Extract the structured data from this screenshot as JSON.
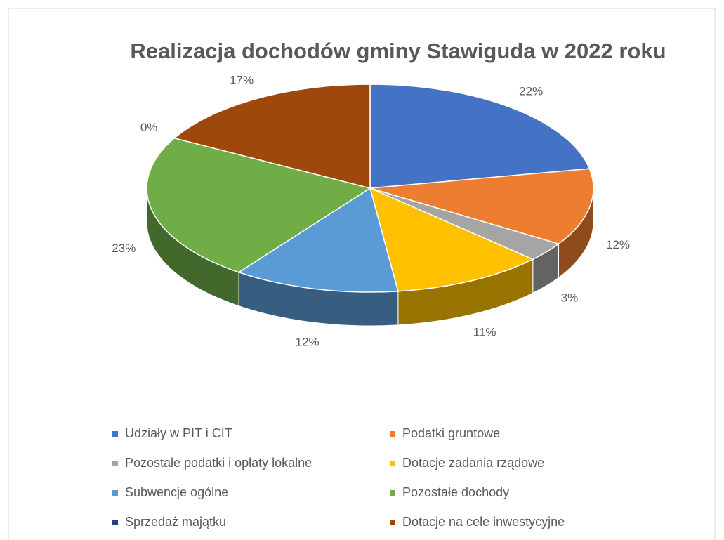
{
  "chart_data": {
    "type": "pie3d",
    "title": "Realizacja dochodów gminy Stawiguda w 2022 roku",
    "categories": [
      "Udziały w PIT i CIT",
      "Podatki gruntowe",
      "Pozostałe podatki i opłaty lokalne",
      "Dotacje zadania rządowe",
      "Subwencje ogólne",
      "Pozostałe dochody",
      "Sprzedaż majątku",
      "Dotacje na cele inwestycyjne"
    ],
    "values": [
      22,
      12,
      3,
      11,
      12,
      23,
      0,
      17
    ],
    "value_labels": [
      "22%",
      "12%",
      "3%",
      "11%",
      "12%",
      "23%",
      "0%",
      "17%"
    ],
    "colors": [
      "#4472c4",
      "#ed7d31",
      "#a5a5a5",
      "#ffc000",
      "#5b9bd5",
      "#70ad47",
      "#264478",
      "#9e480e"
    ],
    "legend": "bottom"
  }
}
